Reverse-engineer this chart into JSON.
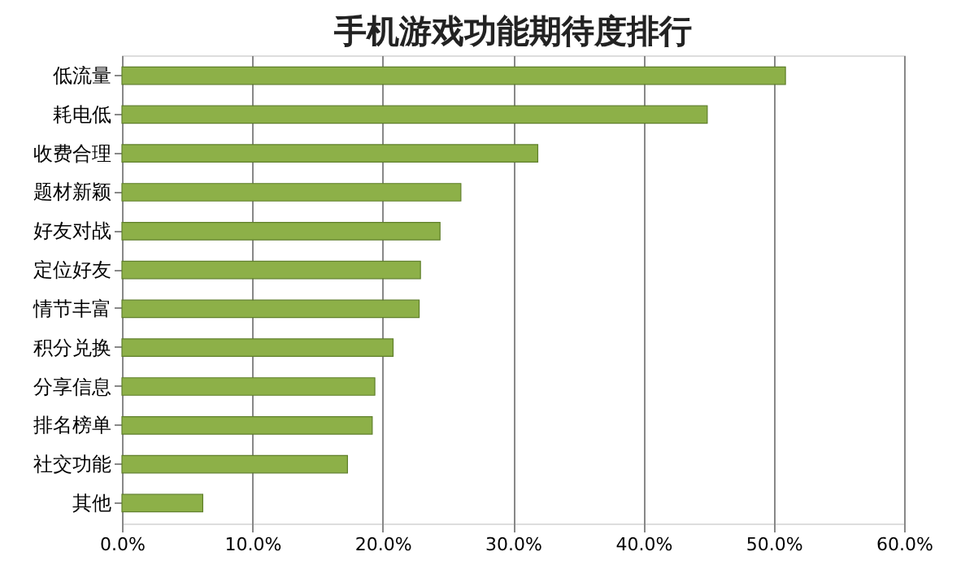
{
  "chart_data": {
    "type": "bar",
    "orientation": "horizontal",
    "title": "手机游戏功能期待度排行",
    "categories": [
      "低流量",
      "耗电低",
      "收费合理",
      "题材新颖",
      "好友对战",
      "定位好友",
      "情节丰富",
      "积分兑换",
      "分享信息",
      "排名榜单",
      "社交功能",
      "其他"
    ],
    "values": [
      50.9,
      44.9,
      31.9,
      26.0,
      24.4,
      22.9,
      22.8,
      20.8,
      19.4,
      19.2,
      17.3,
      6.2
    ],
    "color": "#8db048",
    "xlim": [
      0,
      60
    ],
    "xticks": [
      {
        "value": 0,
        "label": "0.0%"
      },
      {
        "value": 10,
        "label": "10.0%"
      },
      {
        "value": 20,
        "label": "20.0%"
      },
      {
        "value": 30,
        "label": "30.0%"
      },
      {
        "value": 40,
        "label": "40.0%"
      },
      {
        "value": 50,
        "label": "50.0%"
      },
      {
        "value": 60,
        "label": "60.0%"
      }
    ],
    "grid": "x"
  }
}
